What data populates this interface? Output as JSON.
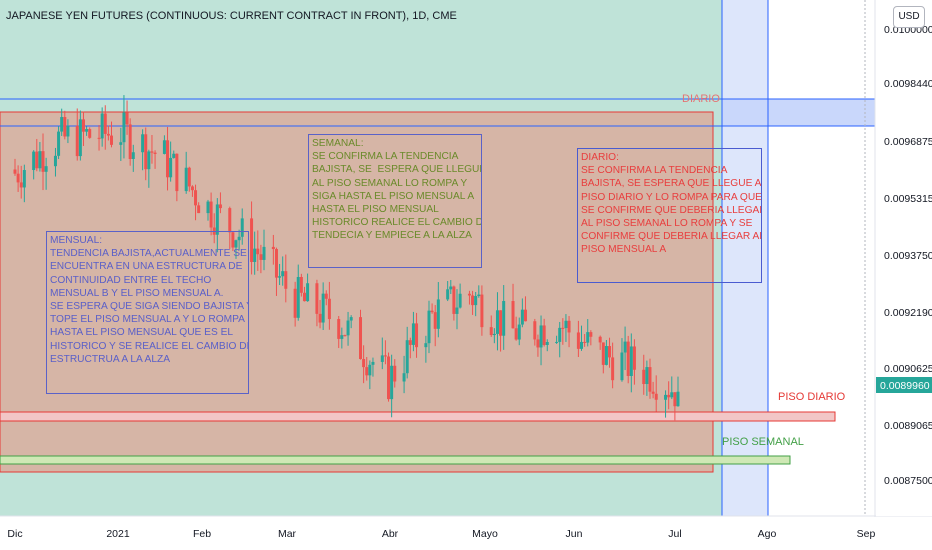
{
  "header": {
    "title": "JAPANESE YEN FUTURES (CONTINUOUS: CURRENT CONTRACT IN FRONT), 1D, CME",
    "currency_button": "USD"
  },
  "colors": {
    "up": "#26a69a",
    "down": "#ef5350",
    "last_price_bg": "#26a69a",
    "red_zone": "#e53935",
    "green_zone": "#43a047",
    "blue_line": "#2962ff"
  },
  "chart_data": {
    "type": "candlestick",
    "symbol": "JAPANESE YEN FUTURES (CONTINUOUS: CURRENT CONTRACT IN FRONT)",
    "interval": "1D",
    "exchange": "CME",
    "x_ticks": [
      "Dic",
      "2021",
      "Feb",
      "Mar",
      "Abr",
      "Mayo",
      "Jun",
      "Jul",
      "Ago",
      "Sep"
    ],
    "y_ticks": [
      "0.0100000",
      "0.0098440",
      "0.0096875",
      "0.0095315",
      "0.0093750",
      "0.0092190",
      "0.0090625",
      "0.0089065",
      "0.0087500"
    ],
    "ylim": [
      0.00866,
      0.01003
    ],
    "last_price": "0.0089960",
    "candles_approx": [
      {
        "date": "2020-12-01",
        "o": 0.00958,
        "h": 0.00962,
        "l": 0.00954,
        "c": 0.00957
      },
      {
        "date": "2020-12-15",
        "o": 0.00964,
        "h": 0.0097,
        "l": 0.00958,
        "c": 0.00966
      },
      {
        "date": "2021-01-04",
        "o": 0.00968,
        "h": 0.0098,
        "l": 0.00962,
        "c": 0.00968
      },
      {
        "date": "2021-01-18",
        "o": 0.00963,
        "h": 0.00967,
        "l": 0.00955,
        "c": 0.00961
      },
      {
        "date": "2021-02-01",
        "o": 0.00955,
        "h": 0.0096,
        "l": 0.00944,
        "c": 0.00948
      },
      {
        "date": "2021-02-15",
        "o": 0.00944,
        "h": 0.0095,
        "l": 0.00937,
        "c": 0.00938
      },
      {
        "date": "2021-03-01",
        "o": 0.00936,
        "h": 0.0094,
        "l": 0.00922,
        "c": 0.00924
      },
      {
        "date": "2021-03-15",
        "o": 0.00918,
        "h": 0.00924,
        "l": 0.00913,
        "c": 0.00918
      },
      {
        "date": "2021-03-31",
        "o": 0.00905,
        "h": 0.0091,
        "l": 0.00898,
        "c": 0.00902
      },
      {
        "date": "2021-04-15",
        "o": 0.00915,
        "h": 0.00925,
        "l": 0.00912,
        "c": 0.0092
      },
      {
        "date": "2021-04-26",
        "o": 0.00925,
        "h": 0.00932,
        "l": 0.0092,
        "c": 0.00925
      },
      {
        "date": "2021-05-10",
        "o": 0.00914,
        "h": 0.0092,
        "l": 0.00911,
        "c": 0.00915
      },
      {
        "date": "2021-05-25",
        "o": 0.00916,
        "h": 0.00922,
        "l": 0.00912,
        "c": 0.00917
      },
      {
        "date": "2021-06-07",
        "o": 0.00908,
        "h": 0.00913,
        "l": 0.00905,
        "c": 0.00909
      },
      {
        "date": "2021-06-21",
        "o": 0.00906,
        "h": 0.00911,
        "l": 0.00901,
        "c": 0.00905
      },
      {
        "date": "2021-07-02",
        "o": 0.009,
        "h": 0.00903,
        "l": 0.00895,
        "c": 0.00899
      }
    ],
    "annotations": [
      {
        "label": "DIARIO",
        "type": "horizontal_band",
        "color": "#2962ff"
      },
      {
        "label": "PISO DIARIO",
        "type": "zone",
        "color": "#e53935"
      },
      {
        "label": "PISO SEMANAL",
        "type": "zone",
        "color": "#43a047"
      }
    ]
  },
  "notes": {
    "mensual": "MENSUAL:\nTENDENCIA BAJISTA,ACTUALMENTE SE\nENCUENTRA EN UNA ESTRUCTURA DE\nCONTINUIDAD ENTRE EL TECHO\nMENSUAL B Y EL PISO MENSUAL A.\nSE ESPERA QUE SIGA SIENDO BAJISTA Y\nTOPE EL PISO MENSUAL A Y LO ROMPA\nHASTA EL PISO MENSUAL QUE ES EL\nHISTORICO Y SE REALICE EL CAMBIO DE\nESTRUCTRUA A LA ALZA",
    "semanal": "SEMANAL:\nSE CONFIRMA LA TENDENCIA\nBAJISTA, SE  ESPERA QUE LLEGUE\nAL PISO SEMANAL LO ROMPA Y\nSIGA HASTA EL PISO MENSUAL A\nHASTA EL PISO MENSUAL\nHISTORICO REALICE EL CAMBIO DE\nTENDECIA Y EMPIECE A LA ALZA",
    "diario": "DIARIO:\nSE CONFIRMA LA TENDENCIA\nBAJISTA, SE ESPERA QUE LLEGUE AL\nPISO DIARIO Y LO ROMPA PARA QUE\nSE CONFIRME QUE DEBERIA LLEGAR\nAL PISO SEMANAL LO ROMPA Y SE\nCONFIRME QUE DEBERIA LLEGAR AL\nPISO MENSUAL A"
  },
  "labels": {
    "diario": "DIARIO",
    "piso_diario": "PISO DIARIO",
    "piso_semanal": "PISO SEMANAL"
  }
}
